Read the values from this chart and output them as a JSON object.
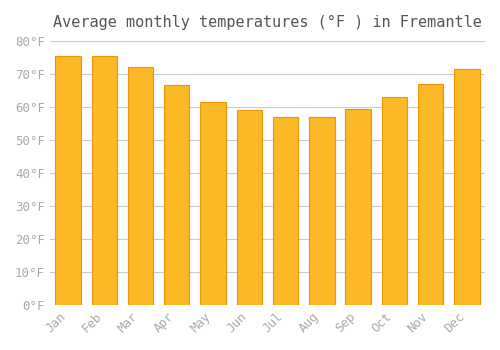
{
  "title": "Average monthly temperatures (°F ) in Fremantle",
  "months": [
    "Jan",
    "Feb",
    "Mar",
    "Apr",
    "May",
    "Jun",
    "Jul",
    "Aug",
    "Sep",
    "Oct",
    "Nov",
    "Dec"
  ],
  "values": [
    75.5,
    75.5,
    72.0,
    66.5,
    61.5,
    59.0,
    57.0,
    57.0,
    59.5,
    63.0,
    67.0,
    71.5
  ],
  "bar_color": "#FDB827",
  "bar_edge_color": "#E8960A",
  "background_color": "#FFFFFF",
  "grid_color": "#CCCCCC",
  "ylim": [
    0,
    80
  ],
  "yticks": [
    0,
    10,
    20,
    30,
    40,
    50,
    60,
    70,
    80
  ],
  "title_fontsize": 11,
  "tick_fontsize": 9,
  "tick_label_color": "#AAAAAA",
  "title_color": "#555555"
}
